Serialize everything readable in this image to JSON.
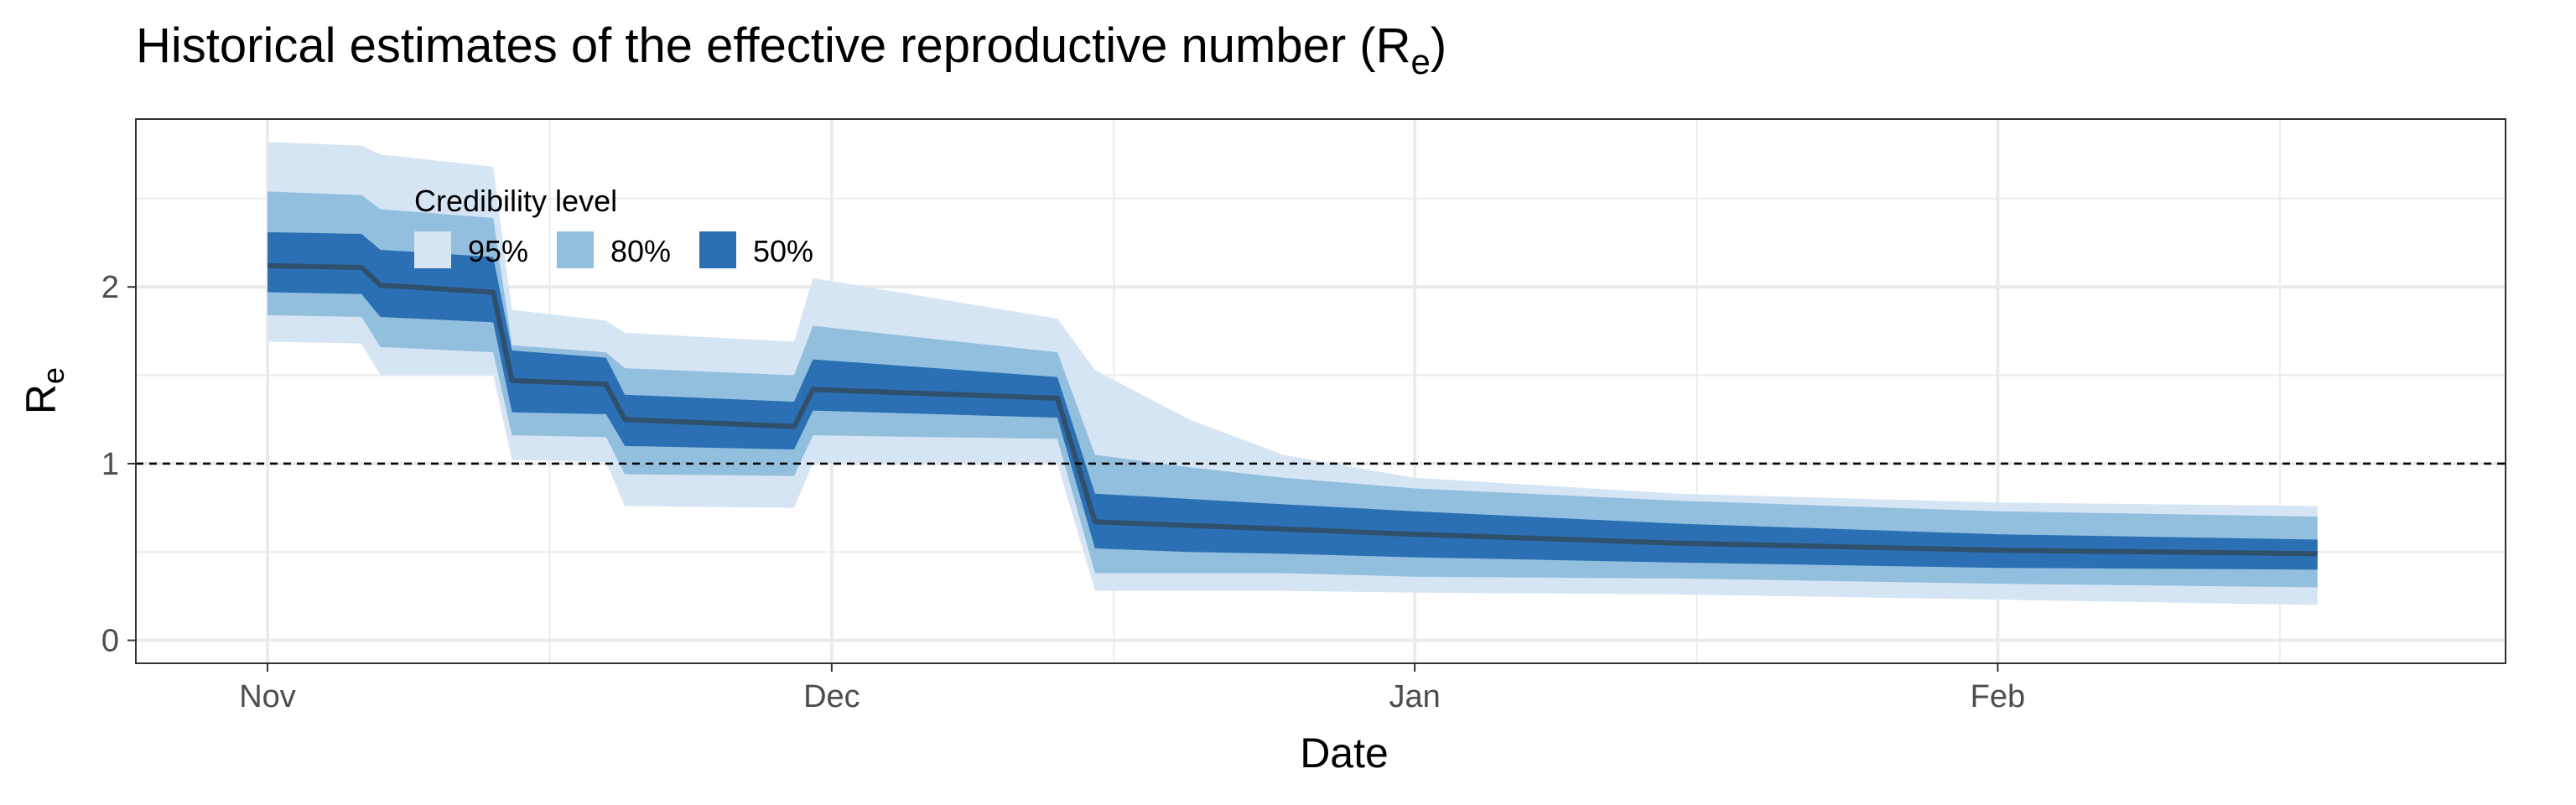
{
  "chart_data": {
    "type": "area",
    "title": "Historical estimates of the effective reproductive number (R",
    "title_subscript": "e",
    "title_suffix": ")",
    "xlabel": "Date",
    "ylabel": "R",
    "ylabel_subscript": "e",
    "x_ticks": [
      {
        "date": "2020-11-01",
        "label": "Nov"
      },
      {
        "date": "2020-12-01",
        "label": "Dec"
      },
      {
        "date": "2021-01-01",
        "label": "Jan"
      },
      {
        "date": "2021-02-01",
        "label": "Feb"
      }
    ],
    "y_ticks": [
      {
        "value": 0,
        "label": "0"
      },
      {
        "value": 1,
        "label": "1"
      },
      {
        "value": 2,
        "label": "2"
      }
    ],
    "xlim": [
      "2020-10-25",
      "2021-02-28"
    ],
    "ylim": [
      -0.13,
      2.95
    ],
    "reference_line": {
      "y": 1,
      "style": "dashed"
    },
    "grid": true,
    "legend": {
      "title": "Credibility level",
      "placement": "top-left inside",
      "items": [
        {
          "label": "95%",
          "color": "#d6e5f4"
        },
        {
          "label": "80%",
          "color": "#93bfde"
        },
        {
          "label": "50%",
          "color": "#2b6fb5"
        }
      ]
    },
    "median_color": "#2f4f6b",
    "series": [
      {
        "date": "2020-11-01",
        "median": 2.12,
        "lo95": 1.69,
        "hi95": 2.82,
        "lo80": 1.84,
        "hi80": 2.54,
        "lo50": 1.97,
        "hi50": 2.31
      },
      {
        "date": "2020-11-06",
        "median": 2.11,
        "lo95": 1.68,
        "hi95": 2.8,
        "lo80": 1.83,
        "hi80": 2.52,
        "lo50": 1.96,
        "hi50": 2.3
      },
      {
        "date": "2020-11-07",
        "median": 2.01,
        "lo95": 1.5,
        "hi95": 2.75,
        "lo80": 1.66,
        "hi80": 2.44,
        "lo50": 1.83,
        "hi50": 2.21
      },
      {
        "date": "2020-11-13",
        "median": 1.97,
        "lo95": 1.5,
        "hi95": 2.68,
        "lo80": 1.63,
        "hi80": 2.39,
        "lo50": 1.8,
        "hi50": 2.17
      },
      {
        "date": "2020-11-14",
        "median": 1.47,
        "lo95": 1.02,
        "hi95": 1.87,
        "lo80": 1.16,
        "hi80": 1.67,
        "lo50": 1.29,
        "hi50": 1.64
      },
      {
        "date": "2020-11-19",
        "median": 1.45,
        "lo95": 1.01,
        "hi95": 1.81,
        "lo80": 1.15,
        "hi80": 1.63,
        "lo50": 1.28,
        "hi50": 1.6
      },
      {
        "date": "2020-11-20",
        "median": 1.25,
        "lo95": 0.76,
        "hi95": 1.74,
        "lo80": 0.94,
        "hi80": 1.54,
        "lo50": 1.1,
        "hi50": 1.39
      },
      {
        "date": "2020-11-29",
        "median": 1.21,
        "lo95": 0.75,
        "hi95": 1.69,
        "lo80": 0.93,
        "hi80": 1.5,
        "lo50": 1.08,
        "hi50": 1.35
      },
      {
        "date": "2020-11-30",
        "median": 1.42,
        "lo95": 1.0,
        "hi95": 2.05,
        "lo80": 1.16,
        "hi80": 1.78,
        "lo50": 1.3,
        "hi50": 1.59
      },
      {
        "date": "2020-12-13",
        "median": 1.37,
        "lo95": 1.0,
        "hi95": 1.82,
        "lo80": 1.14,
        "hi80": 1.63,
        "lo50": 1.26,
        "hi50": 1.49
      },
      {
        "date": "2020-12-15",
        "median": 0.67,
        "lo95": 0.28,
        "hi95": 1.53,
        "lo80": 0.38,
        "hi80": 1.05,
        "lo50": 0.52,
        "hi50": 0.83
      },
      {
        "date": "2020-12-20",
        "median": 0.65,
        "lo95": 0.28,
        "hi95": 1.25,
        "lo80": 0.38,
        "hi80": 0.98,
        "lo50": 0.5,
        "hi50": 0.8
      },
      {
        "date": "2020-12-25",
        "median": 0.63,
        "lo95": 0.28,
        "hi95": 1.05,
        "lo80": 0.38,
        "hi80": 0.92,
        "lo50": 0.49,
        "hi50": 0.77
      },
      {
        "date": "2021-01-01",
        "median": 0.6,
        "lo95": 0.27,
        "hi95": 0.92,
        "lo80": 0.36,
        "hi80": 0.86,
        "lo50": 0.47,
        "hi50": 0.73
      },
      {
        "date": "2021-01-15",
        "median": 0.55,
        "lo95": 0.26,
        "hi95": 0.83,
        "lo80": 0.35,
        "hi80": 0.79,
        "lo50": 0.44,
        "hi50": 0.66
      },
      {
        "date": "2021-02-01",
        "median": 0.51,
        "lo95": 0.23,
        "hi95": 0.78,
        "lo80": 0.32,
        "hi80": 0.73,
        "lo50": 0.41,
        "hi50": 0.6
      },
      {
        "date": "2021-02-18",
        "median": 0.49,
        "lo95": 0.2,
        "hi95": 0.76,
        "lo80": 0.3,
        "hi80": 0.7,
        "lo50": 0.4,
        "hi50": 0.57
      }
    ]
  }
}
